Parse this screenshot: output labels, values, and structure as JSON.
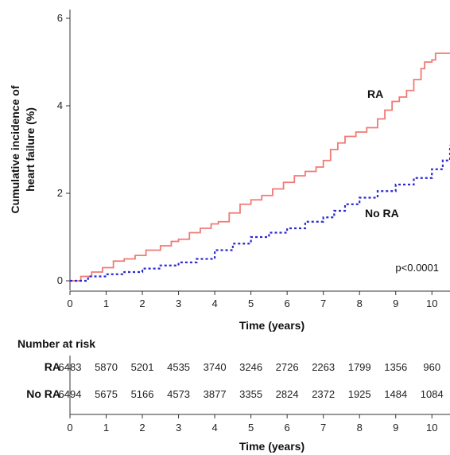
{
  "chart_data": {
    "type": "line",
    "ylabel_lines": [
      "Cumulative incidence of",
      "heart failure (%)"
    ],
    "xlabel": "Time (years)",
    "xlim": [
      0,
      10.5
    ],
    "ylim": [
      0,
      6
    ],
    "x_ticks": [
      0,
      1,
      2,
      3,
      4,
      5,
      6,
      7,
      8,
      9,
      10
    ],
    "y_ticks": [
      0,
      2,
      4,
      6
    ],
    "annotation": "p<0.0001",
    "series": [
      {
        "name": "RA",
        "color": "#f07a74",
        "style": "solid",
        "x": [
          0,
          0.3,
          0.6,
          0.9,
          1.2,
          1.5,
          1.8,
          2.1,
          2.5,
          2.8,
          3.0,
          3.3,
          3.6,
          3.9,
          4.1,
          4.4,
          4.7,
          5.0,
          5.3,
          5.6,
          5.9,
          6.2,
          6.5,
          6.8,
          7.0,
          7.2,
          7.4,
          7.6,
          7.9,
          8.2,
          8.5,
          8.7,
          8.9,
          9.1,
          9.3,
          9.5,
          9.7,
          9.8,
          10.0,
          10.1,
          10.5
        ],
        "y": [
          0,
          0.1,
          0.2,
          0.3,
          0.45,
          0.5,
          0.58,
          0.7,
          0.8,
          0.9,
          0.95,
          1.1,
          1.2,
          1.3,
          1.35,
          1.55,
          1.75,
          1.85,
          1.95,
          2.1,
          2.25,
          2.4,
          2.5,
          2.6,
          2.75,
          3.0,
          3.15,
          3.3,
          3.4,
          3.5,
          3.7,
          3.9,
          4.1,
          4.2,
          4.35,
          4.6,
          4.85,
          5.0,
          5.05,
          5.2,
          5.2
        ]
      },
      {
        "name": "No RA",
        "color": "#2a2ad1",
        "style": "dotted",
        "x": [
          0,
          0.5,
          1.0,
          1.5,
          2.0,
          2.5,
          3.0,
          3.5,
          4.0,
          4.5,
          5.0,
          5.5,
          6.0,
          6.5,
          7.0,
          7.3,
          7.6,
          8.0,
          8.5,
          9.0,
          9.5,
          10.0,
          10.3,
          10.5
        ],
        "y": [
          0,
          0.1,
          0.15,
          0.2,
          0.28,
          0.35,
          0.42,
          0.5,
          0.7,
          0.85,
          1.0,
          1.1,
          1.2,
          1.35,
          1.45,
          1.6,
          1.75,
          1.9,
          2.05,
          2.2,
          2.35,
          2.55,
          2.75,
          3.1
        ]
      }
    ],
    "number_at_risk": {
      "header": "Number at risk",
      "xlabel": "Time (years)",
      "x_ticks": [
        0,
        1,
        2,
        3,
        4,
        5,
        6,
        7,
        8,
        9,
        10
      ],
      "rows": [
        {
          "label": "RA",
          "values": [
            "6483",
            "5870",
            "5201",
            "4535",
            "3740",
            "3246",
            "2726",
            "2263",
            "1799",
            "1356",
            "960"
          ]
        },
        {
          "label": "No RA",
          "values": [
            "6494",
            "5675",
            "5166",
            "4573",
            "3877",
            "3355",
            "2824",
            "2372",
            "1925",
            "1484",
            "1084"
          ]
        }
      ]
    }
  }
}
